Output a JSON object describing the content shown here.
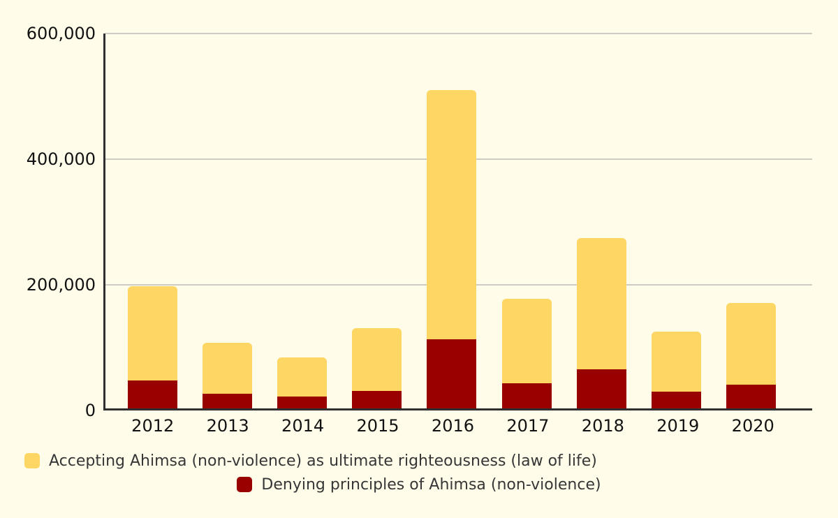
{
  "chart_data": {
    "type": "bar",
    "stacked": true,
    "categories": [
      "2012",
      "2013",
      "2014",
      "2015",
      "2016",
      "2017",
      "2018",
      "2019",
      "2020"
    ],
    "series": [
      {
        "name": "Accepting Ahimsa (non-violence) as ultimate righteousness (law of life)",
        "color": "#FDD663",
        "values": [
          150000,
          82000,
          62000,
          100000,
          397000,
          135000,
          209000,
          95000,
          130000
        ]
      },
      {
        "name": "Denying principles of Ahimsa (non-violence)",
        "color": "#990000",
        "values": [
          45000,
          23000,
          19000,
          28000,
          110000,
          40000,
          62000,
          27000,
          38000
        ]
      }
    ],
    "stack_bottom_first": [
      1,
      0
    ],
    "totals": [
      195000,
      105000,
      81000,
      128000,
      507000,
      175000,
      271000,
      122000,
      168000
    ],
    "ylim": [
      0,
      600000
    ],
    "y_ticks": [
      {
        "label": "0",
        "value": 0
      },
      {
        "label": "200,000",
        "value": 200000
      },
      {
        "label": "400,000",
        "value": 400000
      },
      {
        "label": "600,000",
        "value": 600000
      }
    ],
    "grid": true,
    "legend_position": "bottom"
  },
  "legend": {
    "items": [
      {
        "label": "Accepting Ahimsa (non-violence) as ultimate righteousness (law of life)",
        "color": "#FDD663"
      },
      {
        "label": "Denying principles of Ahimsa (non-violence)",
        "color": "#990000"
      }
    ]
  },
  "colors": {
    "background": "#FFFDE9",
    "axis": "#2F2F2F",
    "gridline": "#CDCDC3",
    "tick_text": "#121212",
    "legend_text": "#363636"
  }
}
